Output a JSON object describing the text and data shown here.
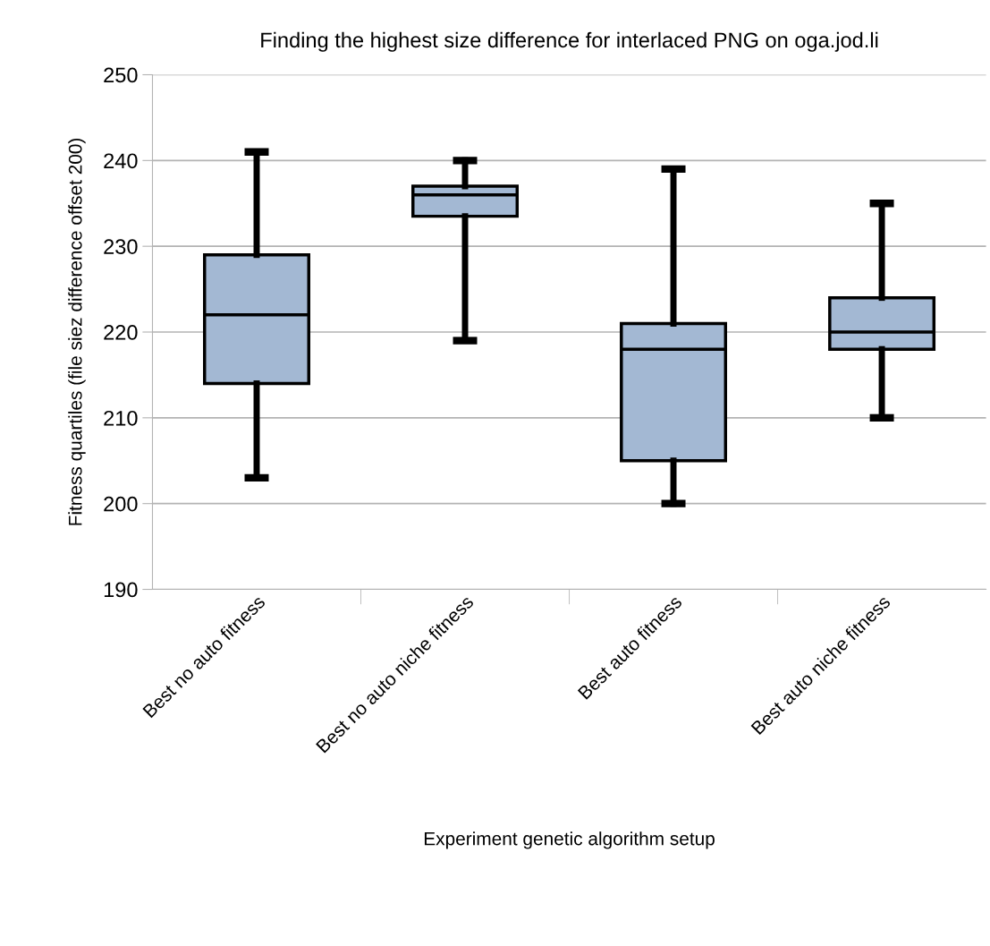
{
  "chart_data": {
    "type": "box",
    "title": "Finding the highest size difference for interlaced PNG on oga.jod.li",
    "xlabel": "Experiment genetic algorithm setup",
    "ylabel": "Fitness quartiles (file siez difference offset 200)",
    "categories": [
      "Best no auto fitness",
      "Best no auto niche fitness",
      "Best auto fitness",
      "Best auto niche fitness"
    ],
    "boxes": [
      {
        "low": 203,
        "q1": 214,
        "median": 222,
        "q3": 229,
        "high": 241
      },
      {
        "low": 219,
        "q1": 233.5,
        "median": 236,
        "q3": 237,
        "high": 240
      },
      {
        "low": 200,
        "q1": 205,
        "median": 218,
        "q3": 221,
        "high": 239
      },
      {
        "low": 210,
        "q1": 218,
        "median": 220,
        "q3": 224,
        "high": 235
      }
    ],
    "color": "#a3b8d3",
    "ylim": [
      190,
      250
    ],
    "yticks": [
      190,
      200,
      210,
      220,
      230,
      240,
      250
    ],
    "grid": "y"
  }
}
